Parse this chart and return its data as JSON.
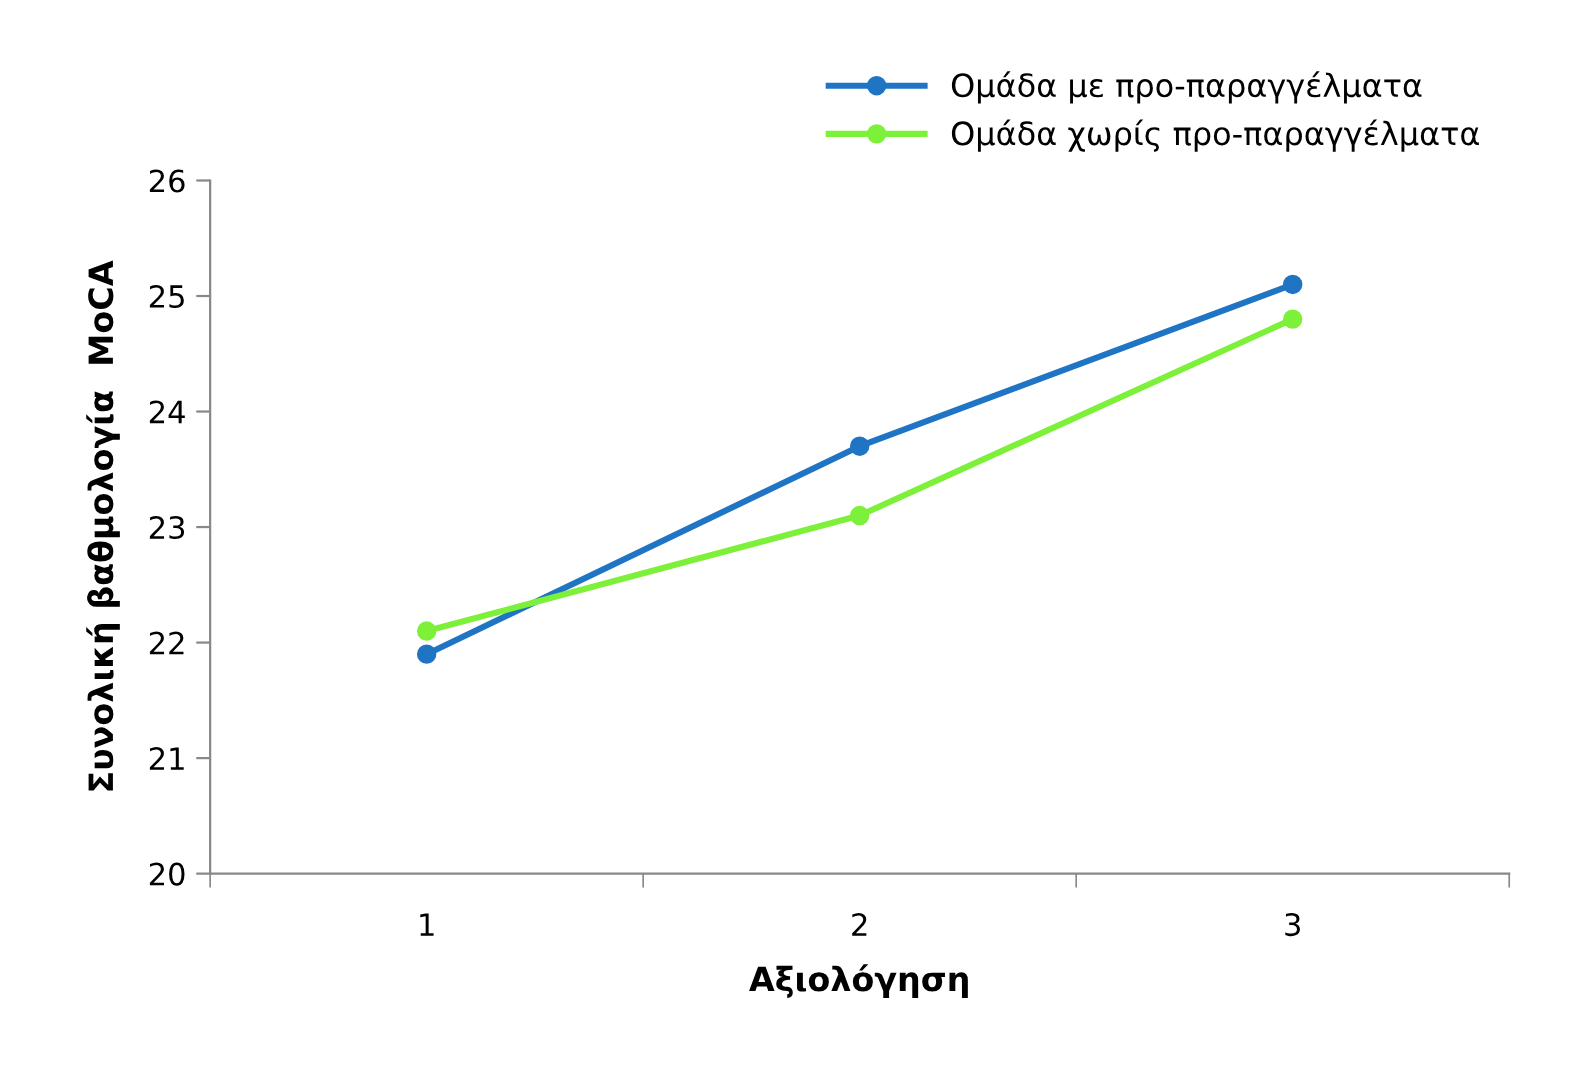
{
  "chart_data": {
    "type": "line",
    "xlabel": "Αξιολόγηση",
    "ylabel": "Συνολική βαθμολογία  MoCA",
    "categories": [
      "1",
      "2",
      "3"
    ],
    "series": [
      {
        "name": "Ομάδα με προ-παραγγέλματα",
        "color": "#1f74c4",
        "values": [
          21.9,
          23.7,
          25.1
        ]
      },
      {
        "name": "Ομάδα χωρίς προ-παραγγέλματα",
        "color": "#7df03a",
        "values": [
          22.1,
          23.1,
          24.8
        ]
      }
    ],
    "ylim": [
      20,
      26
    ],
    "yticks": [
      20,
      21,
      22,
      23,
      24,
      25,
      26
    ],
    "grid": false,
    "legend": "top right",
    "marker": "circle",
    "line_style": "solid"
  }
}
